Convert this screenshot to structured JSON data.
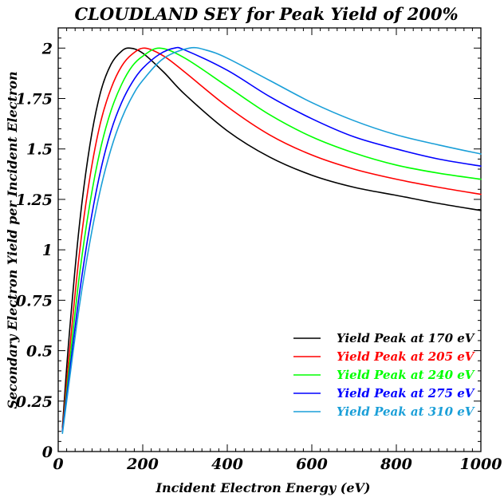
{
  "chart_data": {
    "type": "line",
    "title": "CLOUDLAND SEY for Peak Yield of 200%",
    "xlabel": "Incident Electron Energy (eV)",
    "ylabel": "Secondary Electron Yield per Incident Electron",
    "xlim": [
      0,
      1000
    ],
    "ylim": [
      0,
      2.1
    ],
    "x_ticks": [
      0,
      200,
      400,
      600,
      800,
      1000
    ],
    "x_tick_labels": [
      "0",
      "200",
      "400",
      "600",
      "800",
      "1000"
    ],
    "y_ticks": [
      0,
      0.25,
      0.5,
      0.75,
      1,
      1.25,
      1.5,
      1.75,
      2
    ],
    "y_tick_labels": [
      "0",
      "0.25",
      "0.5",
      "0.75",
      "1",
      "1.25",
      "1.5",
      "1.75",
      "2"
    ],
    "grid": false,
    "legend_position": "bottom-right",
    "series": [
      {
        "name": "Yield Peak at 170 eV",
        "color": "#000000",
        "peak_energy": 170,
        "peak_yield": 2.0,
        "x": [
          10,
          25,
          50,
          75,
          100,
          125,
          150,
          170,
          200,
          250,
          300,
          400,
          500,
          600,
          700,
          800,
          900,
          1000
        ],
        "y": [
          0.12,
          0.55,
          1.12,
          1.52,
          1.78,
          1.92,
          1.985,
          2.0,
          1.975,
          1.88,
          1.77,
          1.59,
          1.46,
          1.37,
          1.31,
          1.27,
          1.23,
          1.195
        ]
      },
      {
        "name": "Yield Peak at 205 eV",
        "color": "#ff0000",
        "peak_energy": 205,
        "peak_yield": 2.0,
        "x": [
          10,
          25,
          50,
          75,
          100,
          125,
          150,
          175,
          205,
          250,
          300,
          400,
          500,
          600,
          700,
          800,
          900,
          1000
        ],
        "y": [
          0.11,
          0.46,
          0.98,
          1.36,
          1.63,
          1.8,
          1.91,
          1.97,
          2.0,
          1.96,
          1.88,
          1.71,
          1.57,
          1.47,
          1.4,
          1.35,
          1.31,
          1.275
        ]
      },
      {
        "name": "Yield Peak at 240 eV",
        "color": "#00ff00",
        "peak_energy": 240,
        "peak_yield": 2.0,
        "x": [
          10,
          25,
          50,
          75,
          100,
          125,
          150,
          175,
          200,
          240,
          300,
          400,
          500,
          600,
          700,
          800,
          900,
          1000
        ],
        "y": [
          0.1,
          0.4,
          0.87,
          1.23,
          1.5,
          1.69,
          1.82,
          1.91,
          1.96,
          2.0,
          1.95,
          1.81,
          1.67,
          1.56,
          1.48,
          1.42,
          1.38,
          1.35
        ]
      },
      {
        "name": "Yield Peak at 275 eV",
        "color": "#0000ff",
        "peak_energy": 275,
        "peak_yield": 2.0,
        "x": [
          10,
          25,
          50,
          75,
          100,
          125,
          150,
          175,
          200,
          240,
          275,
          300,
          400,
          500,
          600,
          700,
          800,
          900,
          1000
        ],
        "y": [
          0.1,
          0.36,
          0.78,
          1.12,
          1.39,
          1.59,
          1.73,
          1.83,
          1.9,
          1.97,
          2.0,
          1.99,
          1.89,
          1.76,
          1.65,
          1.56,
          1.5,
          1.45,
          1.415
        ]
      },
      {
        "name": "Yield Peak at 310 eV",
        "color": "#1a9fd8",
        "peak_energy": 310,
        "peak_yield": 2.0,
        "x": [
          10,
          25,
          50,
          75,
          100,
          125,
          150,
          175,
          200,
          250,
          310,
          350,
          400,
          500,
          600,
          700,
          800,
          900,
          1000
        ],
        "y": [
          0.09,
          0.33,
          0.72,
          1.04,
          1.3,
          1.5,
          1.65,
          1.76,
          1.84,
          1.95,
          2.0,
          1.99,
          1.95,
          1.84,
          1.73,
          1.64,
          1.57,
          1.52,
          1.475
        ]
      }
    ]
  }
}
